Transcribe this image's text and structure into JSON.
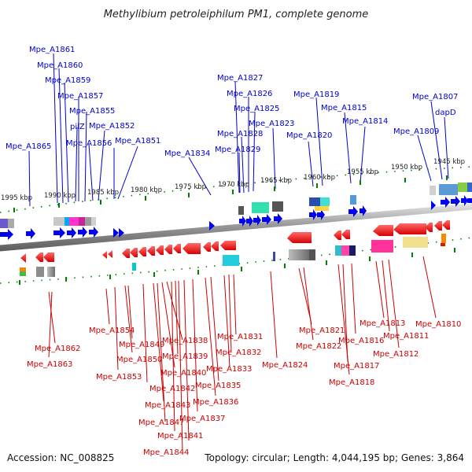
{
  "title": "Methylibium petroleiphilum PM1, complete genome",
  "footer": {
    "accession": "Accession: NC_008825",
    "info": "Topology: circular; Length: 4,044,195 bp; Genes: 3,864"
  },
  "scale_labels": [
    "1995 kbp",
    "1990 kbp",
    "1985 kbp",
    "1980 kbp",
    "1975 kbp",
    "1970 kbp",
    "1965 kbp",
    "1960 kbp",
    "1955 kbp",
    "1950 kbp",
    "1945 kbp"
  ],
  "top_labels": [
    "Mpe_A1861",
    "Mpe_A1860",
    "Mpe_A1859",
    "Mpe_A1857",
    "Mpe_A1855",
    "pilZ",
    "Mpe_A1852",
    "Mpe_A1856",
    "Mpe_A1851",
    "Mpe_A1865",
    "Mpe_A1834",
    "Mpe_A1827",
    "Mpe_A1826",
    "Mpe_A1825",
    "Mpe_A1823",
    "Mpe_A1828",
    "Mpe_A1829",
    "Mpe_A1819",
    "Mpe_A1815",
    "Mpe_A1814",
    "Mpe_A1820",
    "Mpe_A1807",
    "dapD",
    "Mpe_A1809"
  ],
  "bottom_labels": [
    "Mpe_A1862",
    "Mpe_A1863",
    "Mpe_A1854",
    "Mpe_A1853",
    "Mpe_A1849",
    "Mpe_A1850",
    "Mpe_A1838",
    "Mpe_A1839",
    "Mpe_A1840",
    "Mpe_A1842",
    "Mpe_A1843",
    "Mpe_A1847",
    "Mpe_A1841",
    "Mpe_A1844",
    "Mpe_A1831",
    "Mpe_A1832",
    "Mpe_A1833",
    "Mpe_A1835",
    "Mpe_A1836",
    "Mpe_A1837",
    "Mpe_A1824",
    "Mpe_A1821",
    "Mpe_A1822",
    "Mpe_A1813",
    "Mpe_A1816",
    "Mpe_A1817",
    "Mpe_A1818",
    "Mpe_A1811",
    "Mpe_A1812",
    "Mpe_A1810"
  ],
  "colors": {
    "forward": "#0000ee",
    "reverse": "#ee0000",
    "backbone": "#a0a0a0",
    "tick": "#008000"
  }
}
